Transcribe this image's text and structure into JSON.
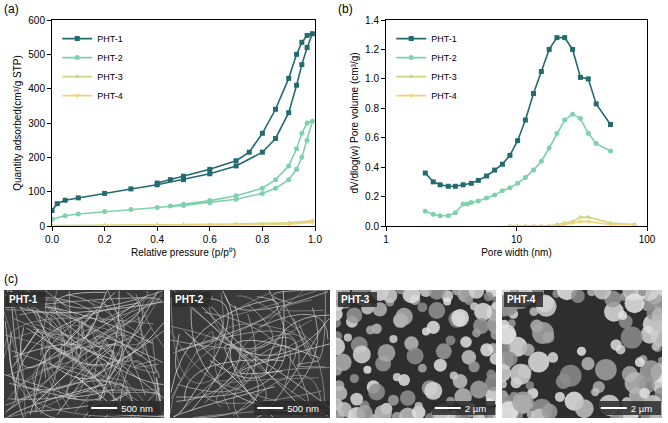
{
  "chart_data": [
    {
      "type": "line",
      "label": "(a)",
      "x_label": "Relative pressure (p/p⁰)",
      "y_label": "Quantity adsorbed(cm³/g STP)",
      "xlim": [
        0,
        1
      ],
      "ylim": [
        0,
        600
      ],
      "xticks": [
        {
          "value": 0,
          "label": "0.0"
        },
        0.2,
        0.4,
        0.6,
        0.8,
        {
          "value": 1,
          "label": "1.0"
        }
      ],
      "yticks": [
        0,
        100,
        200,
        300,
        400,
        500,
        600
      ],
      "grid": false,
      "legend": "top left",
      "series": [
        {
          "name": "PHT-1",
          "color": "#236b6e",
          "marker": "square",
          "line_style": "solid",
          "x": [
            0.0,
            0.02,
            0.05,
            0.1,
            0.2,
            0.3,
            0.4,
            0.5,
            0.6,
            0.7,
            0.8,
            0.85,
            0.9,
            0.93,
            0.95,
            0.97,
            0.99,
            0.97,
            0.95,
            0.93,
            0.9,
            0.85,
            0.8,
            0.75,
            0.7,
            0.6,
            0.5,
            0.45,
            0.4
          ],
          "values": [
            45,
            65,
            75,
            82,
            95,
            108,
            120,
            135,
            152,
            175,
            215,
            255,
            330,
            410,
            470,
            520,
            560,
            555,
            535,
            500,
            430,
            340,
            270,
            215,
            190,
            165,
            145,
            135,
            125
          ]
        },
        {
          "name": "PHT-2",
          "color": "#7fd1ae",
          "marker": "circle",
          "line_style": "solid",
          "x": [
            0.0,
            0.05,
            0.1,
            0.2,
            0.3,
            0.4,
            0.5,
            0.6,
            0.7,
            0.8,
            0.85,
            0.9,
            0.93,
            0.95,
            0.97,
            0.99,
            0.97,
            0.95,
            0.93,
            0.9,
            0.85,
            0.8,
            0.7,
            0.6,
            0.5,
            0.45
          ],
          "values": [
            20,
            30,
            35,
            42,
            48,
            54,
            60,
            68,
            78,
            95,
            110,
            135,
            165,
            200,
            250,
            305,
            300,
            270,
            225,
            175,
            135,
            110,
            88,
            74,
            63,
            58
          ]
        },
        {
          "name": "PHT-3",
          "color": "#cfd77e",
          "marker": "triangle-up",
          "line_style": "solid",
          "x": [
            0.0,
            0.2,
            0.4,
            0.6,
            0.8,
            0.9,
            0.99,
            0.9,
            0.7,
            0.5
          ],
          "values": [
            1,
            2,
            3,
            4,
            6,
            8,
            15,
            9,
            6,
            4
          ]
        },
        {
          "name": "PHT-4",
          "color": "#f2d27a",
          "marker": "triangle-down",
          "line_style": "solid",
          "x": [
            0.0,
            0.2,
            0.4,
            0.6,
            0.8,
            0.9,
            0.99,
            0.9,
            0.6
          ],
          "values": [
            0,
            1,
            1.5,
            2,
            3,
            5,
            10,
            6,
            3
          ]
        }
      ]
    },
    {
      "type": "line",
      "label": "(b)",
      "x_label": "Pore width (nm)",
      "y_label": "dV/dlog(w) Pore volume (cm³/g)",
      "log": "x",
      "xlim": [
        1,
        100
      ],
      "ylim": [
        0,
        1.4
      ],
      "xticks": [
        1,
        10,
        100
      ],
      "yticks": [
        {
          "value": 0,
          "label": "0.0"
        },
        0.2,
        0.4,
        0.6,
        0.8,
        {
          "value": 1,
          "label": "1.0"
        },
        1.2,
        1.4
      ],
      "grid": false,
      "legend": "top left",
      "series": [
        {
          "name": "PHT-1",
          "color": "#236b6e",
          "marker": "square",
          "line_style": "solid",
          "x": [
            2.0,
            2.3,
            2.6,
            3.0,
            3.4,
            3.9,
            4.5,
            5.1,
            5.9,
            6.8,
            7.8,
            8.9,
            10.2,
            11.7,
            13.5,
            15.5,
            17.8,
            20.4,
            23.4,
            26.9,
            30.9,
            35.5,
            40.8,
            52.5
          ],
          "values": [
            0.36,
            0.3,
            0.28,
            0.27,
            0.27,
            0.28,
            0.29,
            0.31,
            0.34,
            0.38,
            0.42,
            0.48,
            0.58,
            0.72,
            0.9,
            1.05,
            1.2,
            1.28,
            1.28,
            1.2,
            1.01,
            1.0,
            0.83,
            0.69
          ]
        },
        {
          "name": "PHT-2",
          "color": "#7fd1ae",
          "marker": "circle",
          "line_style": "solid",
          "x": [
            2.0,
            2.3,
            2.6,
            3.0,
            3.4,
            3.9,
            4.2,
            4.5,
            5.1,
            5.9,
            6.8,
            7.8,
            8.9,
            10.2,
            11.7,
            13.5,
            15.5,
            17.8,
            20.4,
            23.4,
            26.9,
            30.9,
            35.5,
            40.8,
            52.5
          ],
          "values": [
            0.1,
            0.08,
            0.07,
            0.07,
            0.09,
            0.15,
            0.15,
            0.16,
            0.17,
            0.19,
            0.21,
            0.24,
            0.26,
            0.29,
            0.33,
            0.38,
            0.44,
            0.53,
            0.63,
            0.72,
            0.76,
            0.73,
            0.63,
            0.56,
            0.51
          ]
        },
        {
          "name": "PHT-3",
          "color": "#cfd77e",
          "marker": "triangle-up",
          "line_style": "solid",
          "x": [
            8.9,
            10.2,
            11.7,
            13.5,
            15.5,
            17.8,
            20.4,
            23.4,
            26.9,
            30.9,
            35.5,
            52.5,
            80
          ],
          "values": [
            0,
            0,
            0,
            0,
            0,
            0,
            0.01,
            0.02,
            0.03,
            0.06,
            0.06,
            0.02,
            0.01
          ]
        },
        {
          "name": "PHT-4",
          "color": "#f2d27a",
          "marker": "triangle-down",
          "line_style": "solid",
          "x": [
            8.9,
            10.2,
            11.7,
            13.5,
            15.5,
            17.8,
            20.4,
            23.4,
            26.9,
            30.9,
            35.5,
            52.5,
            80
          ],
          "values": [
            0,
            0,
            0,
            0,
            0,
            0,
            0,
            0.01,
            0.02,
            0.03,
            0.03,
            0.01,
            0.01
          ]
        }
      ]
    }
  ],
  "sem_images": {
    "label": "(c)",
    "images": [
      {
        "label": "PHT-1",
        "scale_bar": "500 nm"
      },
      {
        "label": "PHT-2",
        "scale_bar": "500 nm"
      },
      {
        "label": "PHT-3",
        "scale_bar": "2 µm"
      },
      {
        "label": "PHT-4",
        "scale_bar": "2 µm"
      }
    ]
  }
}
